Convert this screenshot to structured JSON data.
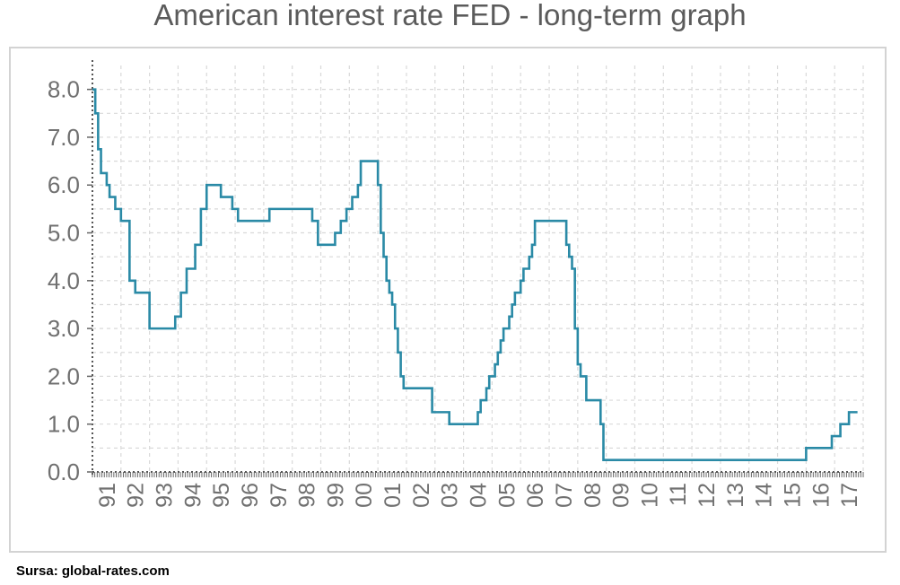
{
  "title": "American interest rate FED - long-term graph",
  "source": "Sursa: global-rates.com",
  "colors": {
    "line": "#2a8aa6",
    "grid": "#d9d9d9",
    "axis_text": "#707070"
  },
  "chart_data": {
    "type": "line",
    "title": "American interest rate FED - long-term graph",
    "xlabel": "",
    "ylabel": "",
    "ylim": [
      0,
      8.5
    ],
    "xlim": [
      1991.0,
      2018.0
    ],
    "yticks": [
      0.0,
      1.0,
      2.0,
      3.0,
      4.0,
      5.0,
      6.0,
      7.0,
      8.0
    ],
    "ytick_labels": [
      "0.0",
      "1.0",
      "2.0",
      "3.0",
      "4.0",
      "5.0",
      "6.0",
      "7.0",
      "8.0"
    ],
    "xticks": [
      1991.5,
      1992.5,
      1993.5,
      1994.5,
      1995.5,
      1996.5,
      1997.5,
      1998.5,
      1999.5,
      2000.5,
      2001.5,
      2002.5,
      2003.5,
      2004.5,
      2005.5,
      2006.5,
      2007.5,
      2008.5,
      2009.5,
      2010.5,
      2011.5,
      2012.5,
      2013.5,
      2014.5,
      2015.5,
      2016.5,
      2017.5
    ],
    "xtick_labels": [
      "91",
      "92",
      "93",
      "94",
      "95",
      "96",
      "97",
      "98",
      "99",
      "00",
      "01",
      "02",
      "03",
      "04",
      "05",
      "06",
      "07",
      "08",
      "09",
      "10",
      "11",
      "12",
      "13",
      "14",
      "15",
      "16",
      "17"
    ],
    "grid": true,
    "step": true,
    "series": [
      {
        "x": [
          1991.0,
          1991.1,
          1991.2,
          1991.3,
          1991.5,
          1991.6,
          1991.8,
          1992.0,
          1992.3,
          1992.5,
          1993.0,
          1993.9,
          1994.1,
          1994.3,
          1994.6,
          1994.8,
          1995.0,
          1995.5,
          1995.9,
          1996.1,
          1997.2,
          1998.7,
          1998.9,
          1999.5,
          1999.7,
          1999.9,
          2000.1,
          2000.3,
          2000.4,
          2001.0,
          2001.1,
          2001.2,
          2001.3,
          2001.4,
          2001.5,
          2001.6,
          2001.7,
          2001.8,
          2001.9,
          2002.0,
          2002.9,
          2003.5,
          2004.5,
          2004.6,
          2004.8,
          2004.9,
          2005.1,
          2005.2,
          2005.3,
          2005.4,
          2005.6,
          2005.7,
          2005.8,
          2006.0,
          2006.1,
          2006.3,
          2006.4,
          2006.5,
          2007.6,
          2007.7,
          2007.8,
          2007.9,
          2008.0,
          2008.1,
          2008.3,
          2008.8,
          2008.9,
          2016.0,
          2016.9,
          2017.2,
          2017.5,
          2017.8
        ],
        "y": [
          8.0,
          7.5,
          6.75,
          6.25,
          6.0,
          5.75,
          5.5,
          5.25,
          4.0,
          3.75,
          3.0,
          3.25,
          3.75,
          4.25,
          4.75,
          5.5,
          6.0,
          5.75,
          5.5,
          5.25,
          5.5,
          5.25,
          4.75,
          5.0,
          5.25,
          5.5,
          5.75,
          6.0,
          6.5,
          6.0,
          5.0,
          4.5,
          4.0,
          3.75,
          3.5,
          3.0,
          2.5,
          2.0,
          1.75,
          1.75,
          1.25,
          1.0,
          1.25,
          1.5,
          1.75,
          2.0,
          2.25,
          2.5,
          2.75,
          3.0,
          3.25,
          3.5,
          3.75,
          4.0,
          4.25,
          4.5,
          4.75,
          5.25,
          4.75,
          4.5,
          4.25,
          3.0,
          2.25,
          2.0,
          1.5,
          1.0,
          0.25,
          0.5,
          0.75,
          1.0,
          1.25,
          1.25
        ]
      }
    ]
  }
}
